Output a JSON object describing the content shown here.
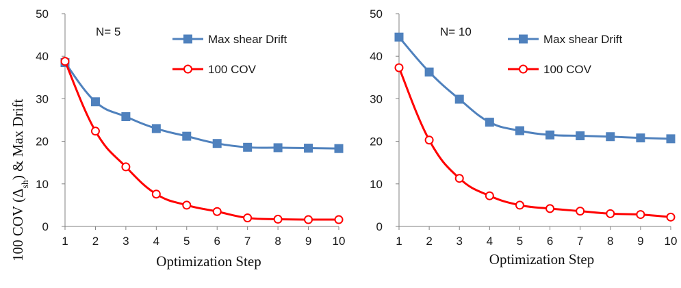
{
  "colors": {
    "max_shear_drift": "#4f81bd",
    "cov": "#ff0000",
    "axis": "#808080"
  },
  "y_axis_label": {
    "prefix": "100 COV (",
    "delta": "Δ",
    "sub": "sh",
    "suffix": ") & Max Drift"
  },
  "chart_data": [
    {
      "type": "line",
      "annotation": "N= 5",
      "xlabel": "Optimization Step",
      "x": [
        1,
        2,
        3,
        4,
        5,
        6,
        7,
        8,
        9,
        10
      ],
      "xticks": [
        "1",
        "2",
        "3",
        "4",
        "5",
        "6",
        "7",
        "8",
        "9",
        "10"
      ],
      "ylim": [
        0,
        50
      ],
      "yticks": [
        "0",
        "10",
        "20",
        "30",
        "40",
        "50"
      ],
      "grid": false,
      "legend_position": "top-right",
      "series": [
        {
          "name": "Max shear Drift",
          "color": "#4f81bd",
          "marker": "square-filled",
          "values": [
            38.5,
            29.3,
            25.8,
            23.0,
            21.2,
            19.5,
            18.6,
            18.5,
            18.4,
            18.3
          ]
        },
        {
          "name": "100 COV",
          "color": "#ff0000",
          "marker": "circle-open",
          "values": [
            38.8,
            22.4,
            14.0,
            7.6,
            5.0,
            3.5,
            2.0,
            1.7,
            1.6,
            1.6
          ]
        }
      ]
    },
    {
      "type": "line",
      "annotation": "N= 10",
      "xlabel": "Optimization Step",
      "x": [
        1,
        2,
        3,
        4,
        5,
        6,
        7,
        8,
        9,
        10
      ],
      "xticks": [
        "1",
        "2",
        "3",
        "4",
        "5",
        "6",
        "7",
        "8",
        "9",
        "10"
      ],
      "ylim": [
        0,
        50
      ],
      "yticks": [
        "0",
        "10",
        "20",
        "30",
        "40",
        "50"
      ],
      "grid": false,
      "legend_position": "top-right",
      "series": [
        {
          "name": "Max shear Drift",
          "color": "#4f81bd",
          "marker": "square-filled",
          "values": [
            44.5,
            36.3,
            29.9,
            24.5,
            22.5,
            21.5,
            21.3,
            21.1,
            20.8,
            20.6
          ]
        },
        {
          "name": "100 COV",
          "color": "#ff0000",
          "marker": "circle-open",
          "values": [
            37.3,
            20.3,
            11.3,
            7.2,
            5.0,
            4.2,
            3.6,
            3.0,
            2.8,
            2.2
          ]
        }
      ]
    }
  ]
}
